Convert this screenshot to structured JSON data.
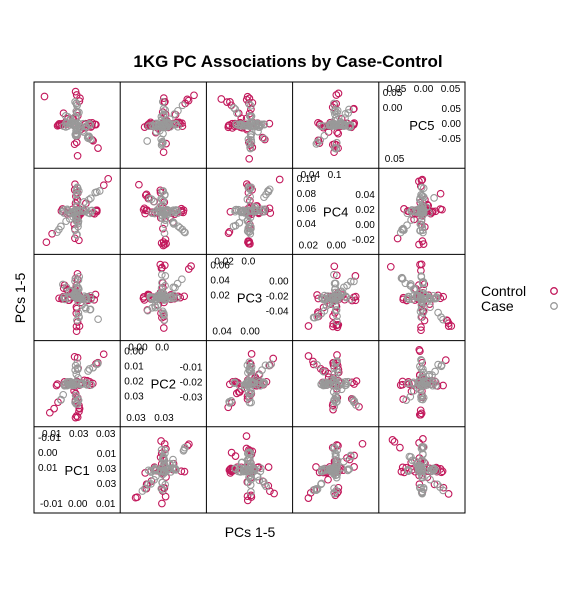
{
  "chart_data": {
    "type": "scatter",
    "title": "1KG PC Associations by Case-Control",
    "xlabel": "PCs 1-5",
    "ylabel": "PCs 1-5",
    "legend_placement": "right",
    "series": [
      {
        "name": "Control",
        "color": "#C2185B",
        "marker": "open-circle"
      },
      {
        "name": "Case",
        "color": "#999999",
        "marker": "open-circle"
      }
    ],
    "variables": [
      "PC1",
      "PC2",
      "PC3",
      "PC4",
      "PC5"
    ],
    "panels": {
      "PC1": {
        "ticks_low": [
          "-0.01",
          "0.00",
          "0.01"
        ],
        "ticks_high": [
          "0.01",
          "0.03",
          "0.03"
        ],
        "ticks_left": [
          "-0.01",
          "0.00",
          "0.01"
        ],
        "ticks_right": [
          "0.01",
          "0.03",
          "0.03"
        ]
      },
      "PC2": {
        "ticks_low": [
          "0.03",
          "0.03"
        ],
        "ticks_high": [
          "0.00",
          "0.0"
        ],
        "ticks_left": [
          "0.00",
          "0.01",
          "0.02",
          "0.03"
        ],
        "ticks_right": [
          "-0.01",
          "-0.02",
          "-0.03"
        ]
      },
      "PC3": {
        "ticks_low": [
          "0.04",
          "0.00"
        ],
        "ticks_high": [
          "0.02",
          "0.0"
        ],
        "ticks_left": [
          "0.06",
          "0.04",
          "0.02"
        ],
        "ticks_right": [
          "0.00",
          "-0.02",
          "-0.04"
        ]
      },
      "PC4": {
        "ticks_low": [
          "0.02",
          "0.00"
        ],
        "ticks_high": [
          "0.04",
          "0.1"
        ],
        "ticks_left": [
          "0.10",
          "0.08",
          "0.06",
          "0.04"
        ],
        "ticks_right": [
          "0.04",
          "0.02",
          "0.00",
          "-0.02"
        ]
      },
      "PC5": {
        "ticks_low": [
          "0.05"
        ],
        "ticks_high": [
          "0.05",
          "0.00",
          "0.05"
        ],
        "ticks_left": [
          "0.05",
          "0.00"
        ],
        "ticks_right": [
          "0.05",
          "0.00",
          "-0.05"
        ]
      }
    }
  }
}
